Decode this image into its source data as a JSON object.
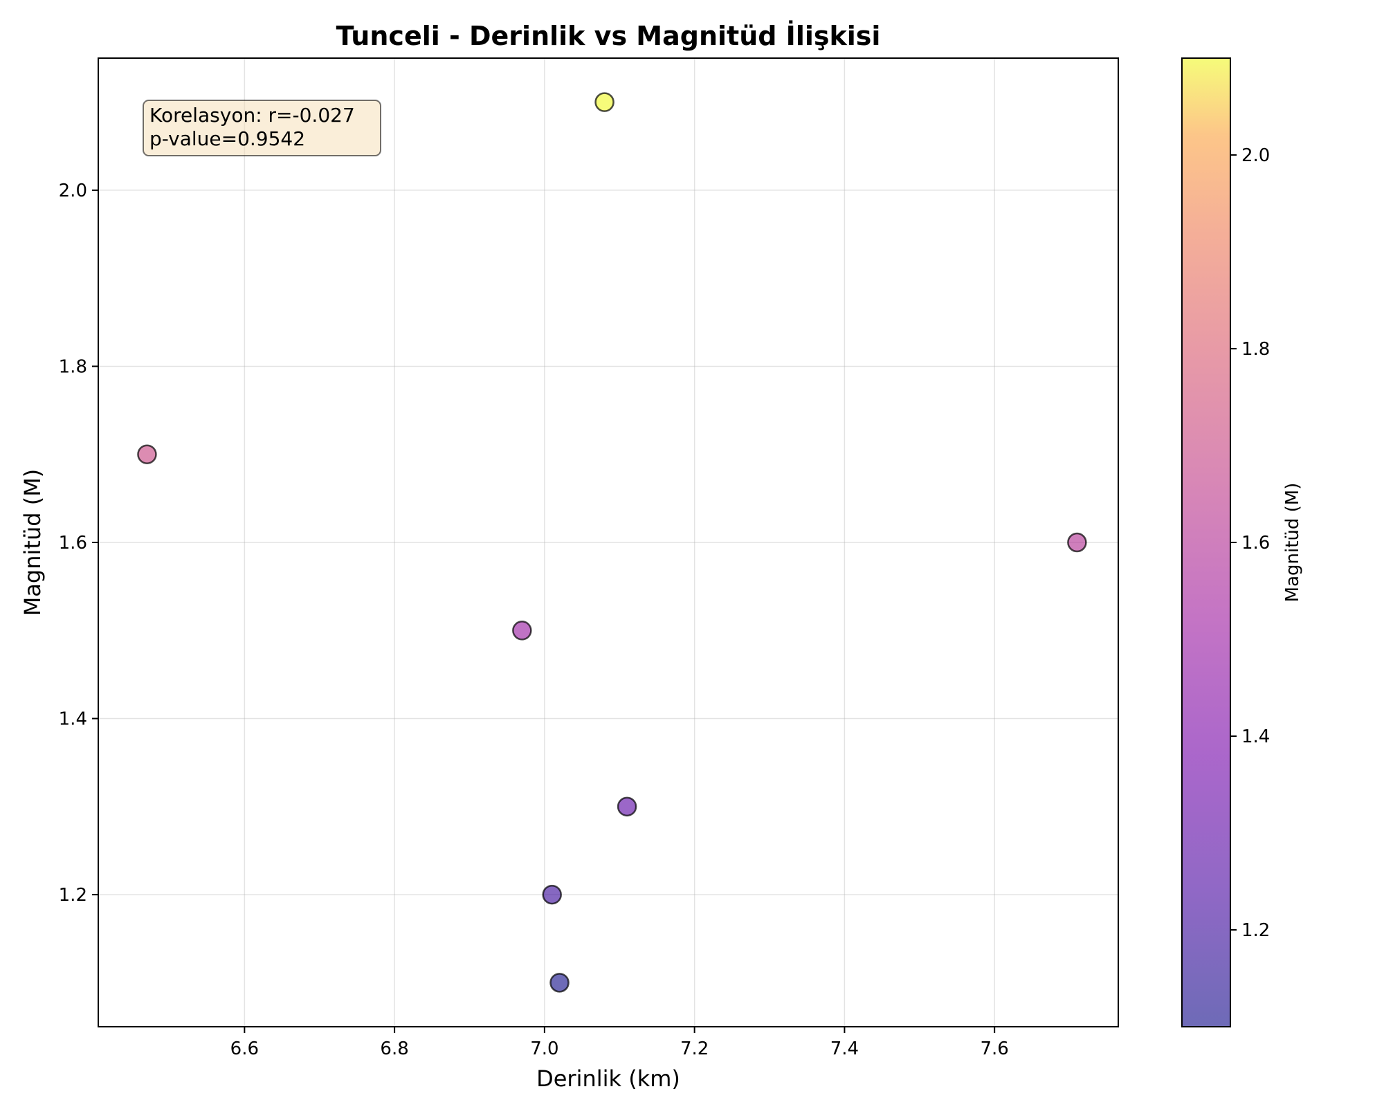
{
  "chart_data": {
    "type": "scatter",
    "title": "Tunceli - Derinlik vs Magnitüd İlişkisi",
    "xlabel": "Derinlik (km)",
    "ylabel": "Magnitüd (M)",
    "xlim": [
      6.405,
      7.765
    ],
    "ylim": [
      1.05,
      2.15
    ],
    "x_ticks": [
      6.6,
      6.8,
      7.0,
      7.2,
      7.4,
      7.6
    ],
    "y_ticks": [
      1.2,
      1.4,
      1.6,
      1.8,
      2.0
    ],
    "grid": true,
    "points": [
      {
        "x": 6.47,
        "y": 1.7
      },
      {
        "x": 6.97,
        "y": 1.5
      },
      {
        "x": 7.01,
        "y": 1.2
      },
      {
        "x": 7.02,
        "y": 1.1
      },
      {
        "x": 7.08,
        "y": 2.1
      },
      {
        "x": 7.11,
        "y": 1.3
      },
      {
        "x": 7.71,
        "y": 1.6
      }
    ],
    "colormap": "plasma",
    "colorbar": {
      "label": "Magnitüd (M)",
      "range": [
        1.1,
        2.1
      ],
      "ticks": [
        1.2,
        1.4,
        1.6,
        1.8,
        2.0
      ]
    },
    "annotation": {
      "lines": [
        "Korelasyon: r=-0.027",
        "p-value=0.9542"
      ],
      "placement": "top-left"
    }
  }
}
